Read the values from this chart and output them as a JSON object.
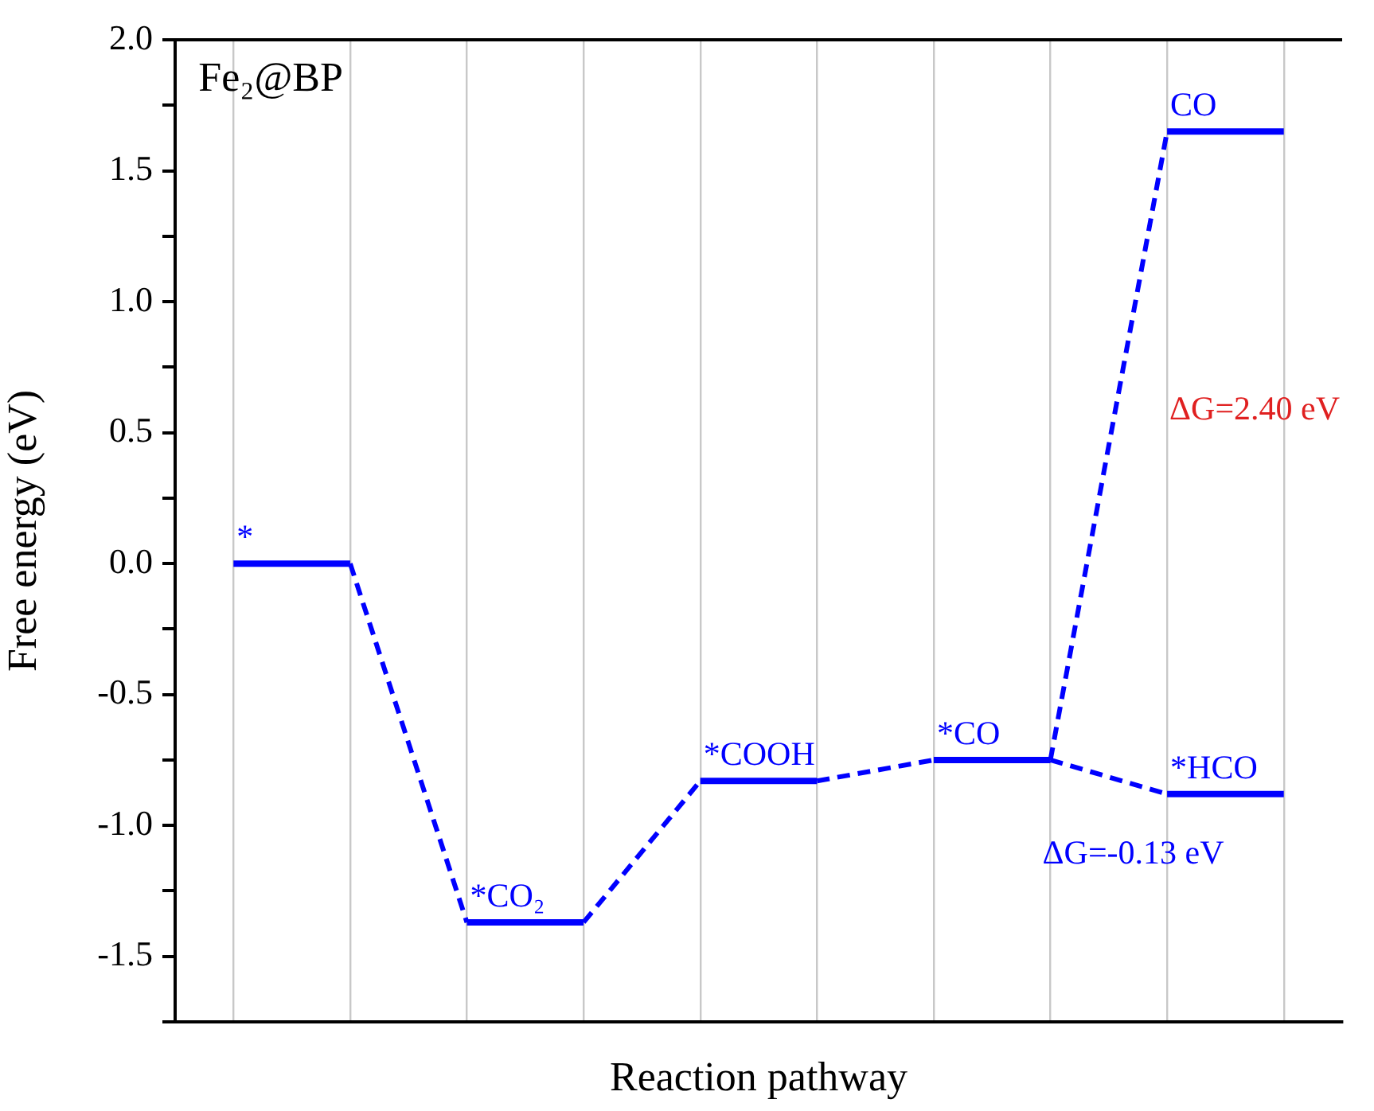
{
  "chart_data": {
    "type": "line",
    "xlabel": "Reaction pathway",
    "ylabel": "Free energy (eV)",
    "categories": [
      null,
      null,
      null,
      null,
      null,
      null,
      null,
      null,
      null,
      null
    ],
    "ylim": [
      -1.75,
      2.0
    ],
    "yticks": [
      {
        "value": -1.75,
        "label": null
      },
      {
        "value": -1.5,
        "label": "-1.5"
      },
      {
        "value": -1.25,
        "label": null
      },
      {
        "value": -1.0,
        "label": "-1.0"
      },
      {
        "value": -0.75,
        "label": null
      },
      {
        "value": -0.5,
        "label": "-0.5"
      },
      {
        "value": -0.25,
        "label": null
      },
      {
        "value": 0,
        "label": "0.0"
      },
      {
        "value": 0.25,
        "label": null
      },
      {
        "value": 0.5,
        "label": "0.5"
      },
      {
        "value": 0.75,
        "label": null
      },
      {
        "value": 1.0,
        "label": "1.0"
      },
      {
        "value": 1.25,
        "label": null
      },
      {
        "value": 1.5,
        "label": "1.5"
      },
      {
        "value": 1.75,
        "label": null
      },
      {
        "value": 2.0,
        "label": "2.0"
      }
    ],
    "grid": "x",
    "tick_labels": "y",
    "legend": false,
    "marker": "none",
    "series": [
      {
        "color": "#0000ff",
        "line_style": "solid",
        "values": [
          0,
          0,
          null,
          null,
          null,
          null,
          null,
          null,
          null,
          null
        ],
        "value_labels": [
          "*",
          null,
          null,
          null,
          null,
          null,
          null,
          null,
          null,
          null
        ]
      },
      {
        "color": "#0000ff",
        "line_style": "solid",
        "values": [
          null,
          null,
          -1.37,
          -1.37,
          null,
          null,
          null,
          null,
          null,
          null
        ],
        "value_labels": [
          null,
          null,
          "*CO₂",
          null,
          null,
          null,
          null,
          null,
          null,
          null
        ]
      },
      {
        "color": "#0000ff",
        "line_style": "solid",
        "values": [
          null,
          null,
          null,
          null,
          -0.83,
          -0.83,
          null,
          null,
          null,
          null
        ],
        "value_labels": [
          null,
          null,
          null,
          null,
          "*COOH",
          null,
          null,
          null,
          null,
          null
        ]
      },
      {
        "color": "#0000ff",
        "line_style": "solid",
        "values": [
          null,
          null,
          null,
          null,
          null,
          null,
          -0.75,
          -0.75,
          null,
          null
        ],
        "value_labels": [
          null,
          null,
          null,
          null,
          null,
          null,
          "*CO",
          null,
          null,
          null
        ]
      },
      {
        "color": "#0000ff",
        "line_style": "solid",
        "values": [
          null,
          null,
          null,
          null,
          null,
          null,
          null,
          null,
          1.65,
          1.65
        ],
        "value_labels": [
          null,
          null,
          null,
          null,
          null,
          null,
          null,
          null,
          "CO",
          null
        ]
      },
      {
        "color": "#0000ff",
        "line_style": "solid",
        "values": [
          null,
          null,
          null,
          null,
          null,
          null,
          null,
          null,
          -0.88,
          -0.88
        ],
        "value_labels": [
          null,
          null,
          null,
          null,
          null,
          null,
          null,
          null,
          "*HCO",
          null
        ]
      },
      {
        "color": "#0000ff",
        "line_style": "dashed",
        "values": [
          null,
          0,
          -1.37,
          null,
          null,
          null,
          null,
          null,
          null,
          null
        ]
      },
      {
        "color": "#0000ff",
        "line_style": "dashed",
        "values": [
          null,
          null,
          null,
          -1.37,
          -0.83,
          null,
          null,
          null,
          null,
          null
        ]
      },
      {
        "color": "#0000ff",
        "line_style": "dashed",
        "values": [
          null,
          null,
          null,
          null,
          null,
          -0.83,
          -0.75,
          null,
          null,
          null
        ]
      },
      {
        "color": "#0000ff",
        "line_style": "dashed",
        "values": [
          null,
          null,
          null,
          null,
          null,
          null,
          null,
          -0.75,
          1.65,
          null
        ]
      },
      {
        "color": "#0000ff",
        "line_style": "dashed",
        "values": [
          null,
          null,
          null,
          null,
          null,
          null,
          null,
          -0.75,
          -0.88,
          null
        ]
      }
    ],
    "annotations": [
      "Fe₂@BP",
      "ΔG=2.40 eV",
      "ΔG=-0.13 eV"
    ]
  }
}
